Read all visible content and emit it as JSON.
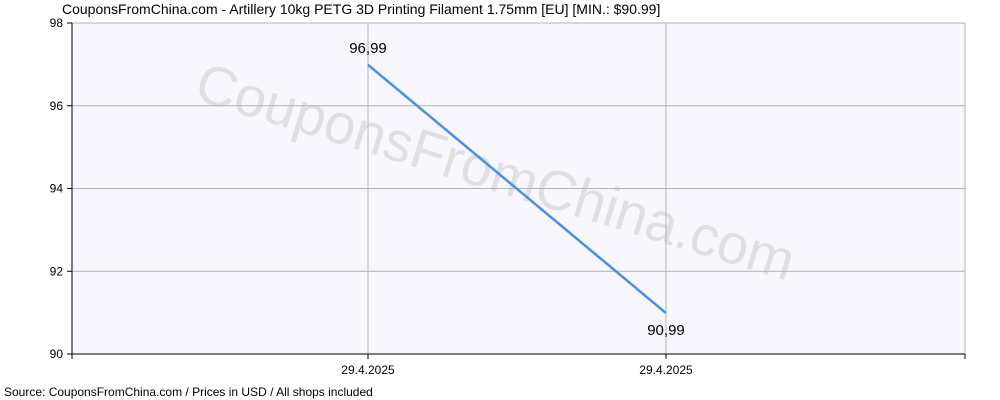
{
  "chart_data": {
    "type": "line",
    "title": "CouponsFromChina.com - Artillery 10kg PETG 3D Printing Filament 1.75mm [EU] [MIN.: $90.99]",
    "source": "Source: CouponsFromChina.com / Prices in USD / All shops included",
    "watermark": "CouponsFromChina.com",
    "ylim": [
      90,
      98
    ],
    "yticks": [
      90,
      92,
      94,
      96,
      98
    ],
    "x_tick_labels": [
      "29.4.2025",
      "29.4.2025"
    ],
    "series": [
      {
        "values": [
          96.99,
          90.99
        ],
        "data_labels": [
          "96,99",
          "90,99"
        ],
        "color": "#4a90e2"
      }
    ],
    "grid": true
  },
  "colors": {
    "plot_background": "#f7f7fd",
    "grid": "#b4b4b4",
    "axis": "#000000",
    "line": "#4a90e2"
  }
}
